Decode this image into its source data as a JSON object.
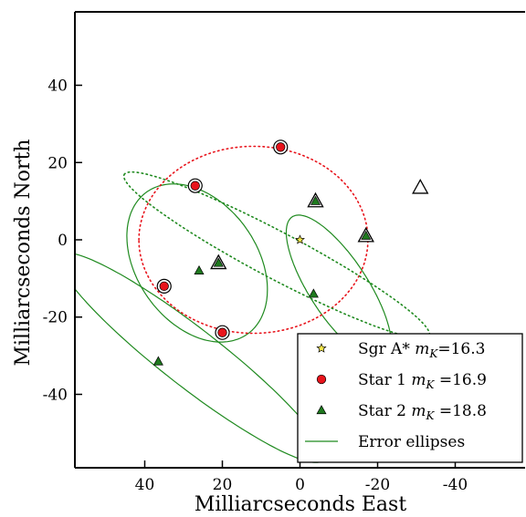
{
  "chart_data": {
    "type": "scatter",
    "xlabel": "Milliarcseconds East",
    "ylabel": "Milliarcseconds North",
    "xlim": [
      58,
      -58
    ],
    "ylim": [
      -59,
      59
    ],
    "x_ticks": [
      40,
      20,
      0,
      -20,
      -40
    ],
    "x_tick_labels": [
      "40",
      "20",
      "0",
      "-20",
      "-40"
    ],
    "y_ticks": [
      40,
      20,
      0,
      -20,
      -40
    ],
    "y_tick_labels": [
      "40",
      "20",
      "0",
      "-20",
      "-40"
    ],
    "legend_position": "bottom-right",
    "legend": [
      {
        "label_main": "Sgr A* ",
        "label_mag": "m",
        "label_sub": "K",
        "label_val": "=16.3",
        "marker": "star",
        "color": "#f5e84a"
      },
      {
        "label_main": "Star 1 ",
        "label_mag": "m",
        "label_sub": "K",
        "label_val": " =16.9",
        "marker": "circle",
        "color": "#e8141c"
      },
      {
        "label_main": "Star 2 ",
        "label_mag": "m",
        "label_sub": "K",
        "label_val": " =18.8",
        "marker": "triangle",
        "color": "#1f7a1f"
      },
      {
        "label_main": "Error ellipses",
        "label_mag": "",
        "label_sub": "",
        "label_val": "",
        "marker": "line",
        "color": "#1f8a1f"
      }
    ],
    "series": [
      {
        "name": "Sgr A*",
        "marker": "star",
        "color": "#f5e84a",
        "points": [
          [
            0,
            0
          ]
        ]
      },
      {
        "name": "Star 1",
        "marker": "circle",
        "color": "#e8141c",
        "points": [
          [
            5,
            24
          ],
          [
            27,
            14
          ],
          [
            35,
            -12
          ],
          [
            20,
            -24
          ]
        ],
        "ringed": [
          true,
          true,
          true,
          true
        ]
      },
      {
        "name": "Star 2",
        "marker": "triangle",
        "color": "#1f7a1f",
        "points": [
          [
            21,
            -6
          ],
          [
            26,
            -8
          ],
          [
            -4,
            10
          ],
          [
            -17,
            1
          ],
          [
            -3.5,
            -14
          ],
          [
            36.5,
            -31.5
          ]
        ],
        "ringed": [
          true,
          false,
          true,
          true,
          false,
          false
        ]
      }
    ],
    "open_markers": [
      {
        "marker": "triangle",
        "point": [
          -31,
          13.5
        ]
      }
    ],
    "orbits": [
      {
        "series": "Star 1",
        "style": "dotted",
        "color": "#e8141c",
        "cx": 12,
        "cy": 0,
        "rx": 29.5,
        "ry": 24.2,
        "angle": 0
      },
      {
        "series": "Star 2",
        "style": "dotted",
        "color": "#1f8a1f",
        "cx": 6,
        "cy": -4,
        "rx": 44.5,
        "ry": 6,
        "angle": 28
      }
    ],
    "error_ellipses": [
      {
        "cx": 26.5,
        "cy": -6,
        "rx": 22.5,
        "ry": 15.5,
        "angle": 55
      },
      {
        "cx": -10,
        "cy": -12.5,
        "rx": 22,
        "ry": 7.5,
        "angle": 57
      },
      {
        "cx": 28,
        "cy": -30.5,
        "rx": 43,
        "ry": 7.5,
        "angle": 38
      }
    ]
  }
}
